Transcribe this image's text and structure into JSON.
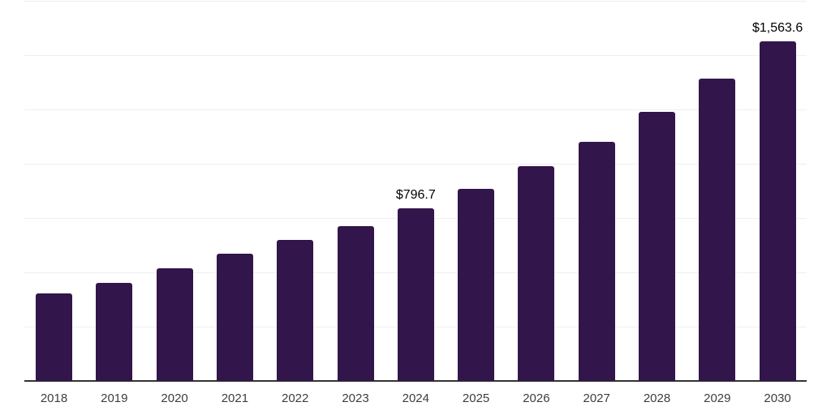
{
  "chart_data": {
    "type": "bar",
    "title": "",
    "xlabel": "",
    "ylabel": "",
    "categories": [
      "2018",
      "2019",
      "2020",
      "2021",
      "2022",
      "2023",
      "2024",
      "2025",
      "2026",
      "2027",
      "2028",
      "2029",
      "2030"
    ],
    "values": [
      403.0,
      450.9,
      519.5,
      587.0,
      650.4,
      713.0,
      796.7,
      884.6,
      989.0,
      1101.2,
      1239.2,
      1392.2,
      1563.6
    ],
    "data_labels": [
      {
        "index": 6,
        "text": "$796.7"
      },
      {
        "index": 12,
        "text": "$1,563.6"
      }
    ],
    "ylim": [
      0,
      1750
    ],
    "gridline_step": 250,
    "grid": true,
    "legend": "none",
    "y_axis_tick_labels_visible": false,
    "colors": {
      "bar": "#32154a",
      "axis_line": "#333333",
      "gridline": "#efefef",
      "tick_label": "#3d3d3d",
      "value_label": "#000000",
      "background": "#ffffff"
    }
  }
}
